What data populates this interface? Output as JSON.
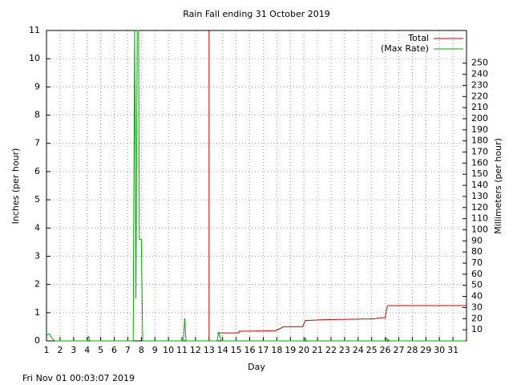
{
  "chart_data": {
    "type": "line",
    "title": "Rain Fall ending 31 October 2019",
    "x_label": "Day",
    "y_label": "Inches (per hour)",
    "y2_label": "Millimeters (per hour)",
    "footer": "Fri Nov 01 00:03:07 2019",
    "xlim": [
      1,
      32
    ],
    "xticks": [
      1,
      2,
      3,
      4,
      5,
      6,
      7,
      8,
      9,
      10,
      11,
      12,
      13,
      14,
      15,
      16,
      17,
      18,
      19,
      20,
      21,
      22,
      23,
      24,
      25,
      26,
      27,
      28,
      29,
      30,
      31
    ],
    "ylim": [
      0,
      11
    ],
    "yticks": [
      0,
      1,
      2,
      3,
      4,
      5,
      6,
      7,
      8,
      9,
      10,
      11
    ],
    "y2lim": [
      0,
      279.4
    ],
    "y2ticks": [
      10,
      20,
      30,
      40,
      50,
      60,
      70,
      80,
      90,
      100,
      110,
      120,
      130,
      140,
      150,
      160,
      170,
      180,
      190,
      200,
      210,
      220,
      230,
      240,
      250
    ],
    "grid": true,
    "legend": "top-right",
    "vline": {
      "x": 13,
      "color": "#cc0000"
    },
    "series": [
      {
        "name": "Total",
        "color": "#cc0000",
        "x": [
          13.6,
          15.2,
          15.2,
          17.9,
          18.2,
          18.5,
          19.9,
          20.1,
          21.5,
          25.2,
          25.6,
          26.0,
          26.1,
          26.2,
          32
        ],
        "values": [
          0.28,
          0.28,
          0.34,
          0.36,
          0.43,
          0.5,
          0.5,
          0.72,
          0.75,
          0.78,
          0.82,
          0.82,
          1.15,
          1.25,
          1.25
        ]
      },
      {
        "name": "(Max Rate)",
        "color": "#00aa00",
        "x": [
          1,
          1.2,
          1.4,
          1.6,
          4.0,
          4.1,
          4.2,
          7.4,
          7.5,
          7.6,
          7.7,
          7.8,
          7.85,
          8.0,
          8.1,
          11.1,
          11.2,
          11.3,
          13.6,
          13.7,
          13.9,
          20.0,
          20.1,
          20.2,
          26.0,
          26.1,
          26.3,
          31.9
        ],
        "values": [
          0.2,
          0.25,
          0.1,
          0,
          0,
          0.15,
          0,
          0,
          11,
          1.5,
          11,
          11,
          3.6,
          3.6,
          0,
          0,
          0.8,
          0,
          0,
          0.3,
          0,
          0,
          0.1,
          0,
          0,
          0.1,
          0,
          0
        ]
      }
    ]
  }
}
